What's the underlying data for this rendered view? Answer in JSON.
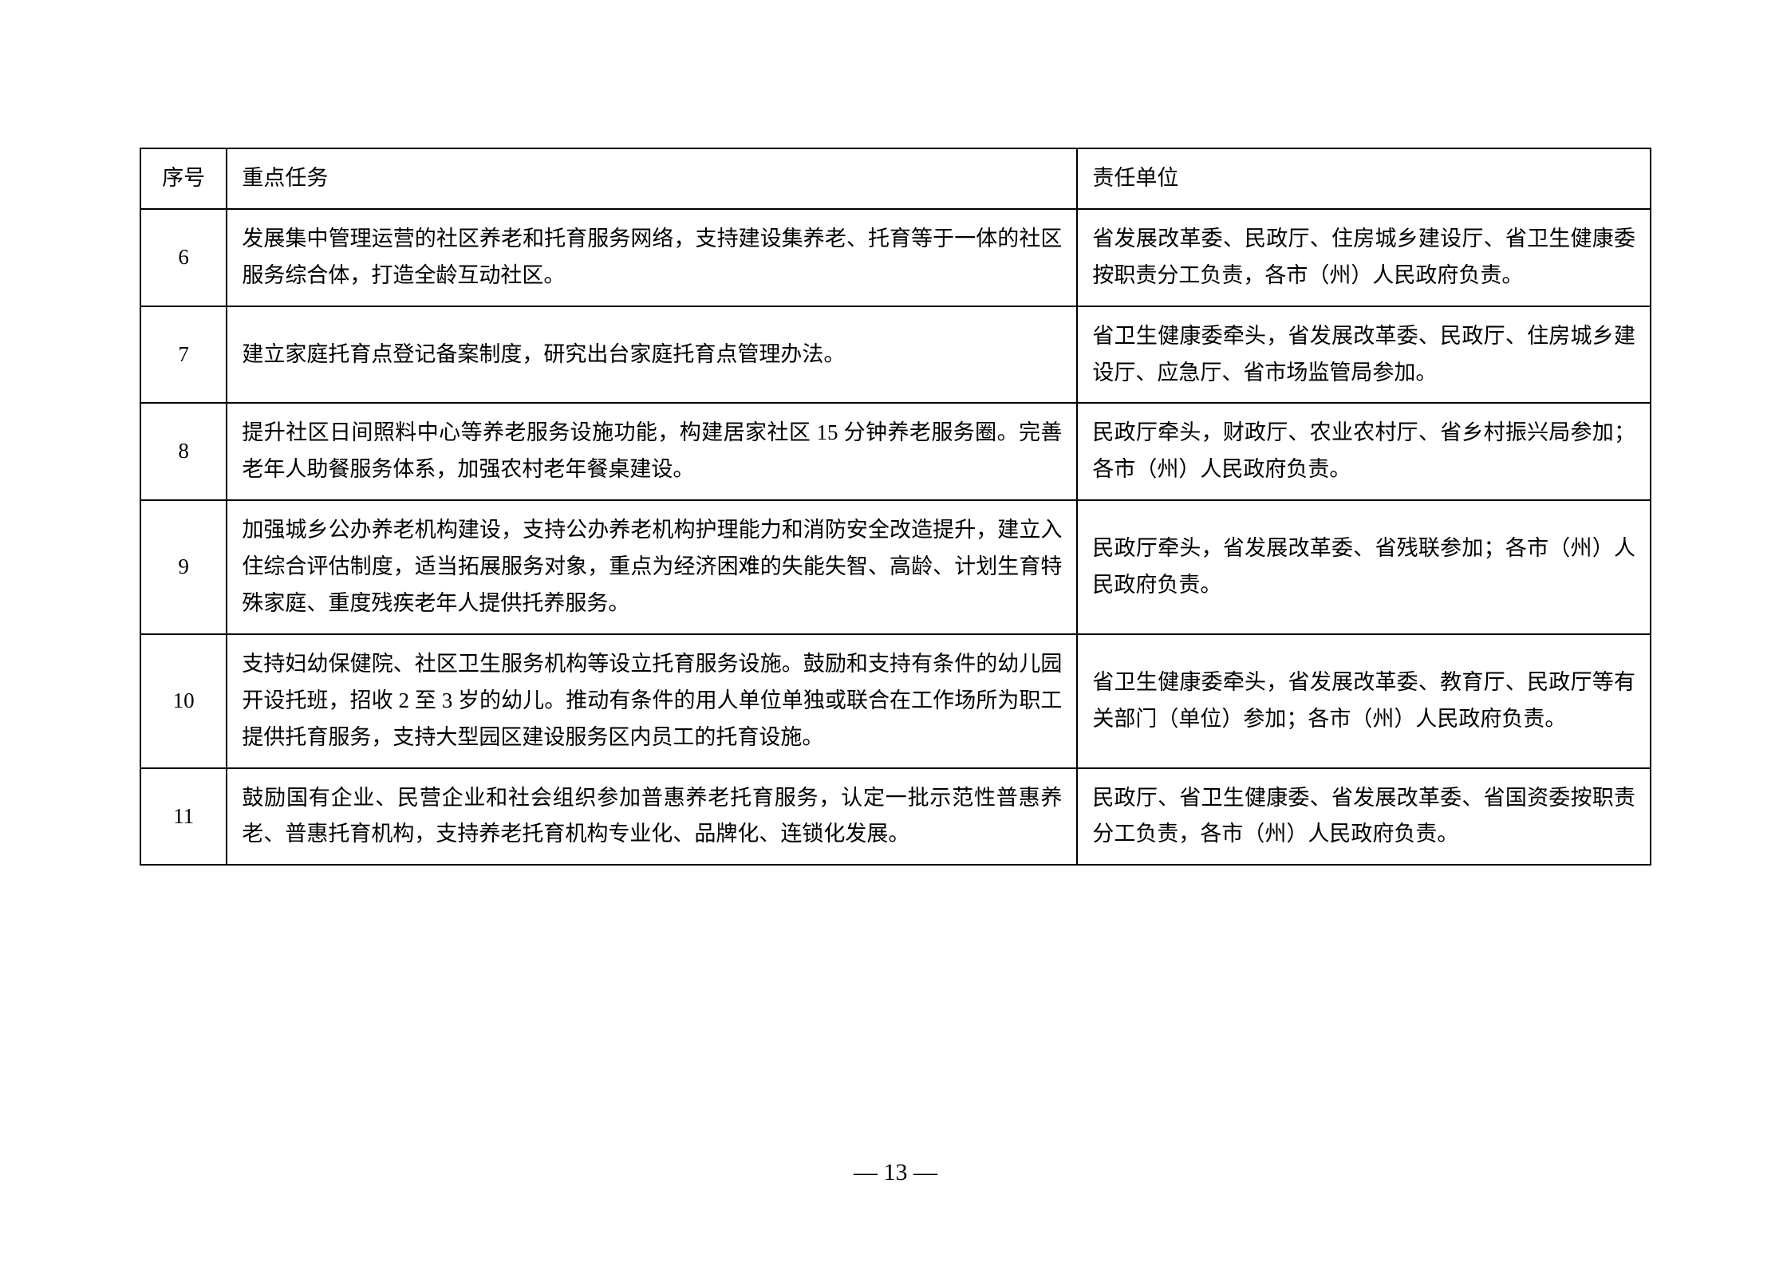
{
  "table": {
    "headers": {
      "seq": "序号",
      "task": "重点任务",
      "unit": "责任单位"
    },
    "rows": [
      {
        "seq": "6",
        "task": "发展集中管理运营的社区养老和托育服务网络，支持建设集养老、托育等于一体的社区服务综合体，打造全龄互动社区。",
        "unit": "省发展改革委、民政厅、住房城乡建设厅、省卫生健康委按职责分工负责，各市（州）人民政府负责。"
      },
      {
        "seq": "7",
        "task": "建立家庭托育点登记备案制度，研究出台家庭托育点管理办法。",
        "unit": "省卫生健康委牵头，省发展改革委、民政厅、住房城乡建设厅、应急厅、省市场监管局参加。"
      },
      {
        "seq": "8",
        "task": "提升社区日间照料中心等养老服务设施功能，构建居家社区 15 分钟养老服务圈。完善老年人助餐服务体系，加强农村老年餐桌建设。",
        "unit": "民政厅牵头，财政厅、农业农村厅、省乡村振兴局参加；各市（州）人民政府负责。"
      },
      {
        "seq": "9",
        "task": "加强城乡公办养老机构建设，支持公办养老机构护理能力和消防安全改造提升，建立入住综合评估制度，适当拓展服务对象，重点为经济困难的失能失智、高龄、计划生育特殊家庭、重度残疾老年人提供托养服务。",
        "unit": "民政厅牵头，省发展改革委、省残联参加；各市（州）人民政府负责。"
      },
      {
        "seq": "10",
        "task": "支持妇幼保健院、社区卫生服务机构等设立托育服务设施。鼓励和支持有条件的幼儿园开设托班，招收 2 至 3 岁的幼儿。推动有条件的用人单位单独或联合在工作场所为职工提供托育服务，支持大型园区建设服务区内员工的托育设施。",
        "unit": "省卫生健康委牵头，省发展改革委、教育厅、民政厅等有关部门（单位）参加；各市（州）人民政府负责。"
      },
      {
        "seq": "11",
        "task": "鼓励国有企业、民营企业和社会组织参加普惠养老托育服务，认定一批示范性普惠养老、普惠托育机构，支持养老托育机构专业化、品牌化、连锁化发展。",
        "unit": "民政厅、省卫生健康委、省发展改革委、省国资委按职责分工负责，各市（州）人民政府负责。"
      }
    ]
  },
  "pageNumber": "— 13 —",
  "styling": {
    "pageWidth": 2245,
    "pageHeight": 1587,
    "backgroundColor": "#ffffff",
    "borderColor": "#000000",
    "textColor": "#000000",
    "fontFamily": "SimSun",
    "cellFontSize": 27,
    "pageNumberFontSize": 30,
    "columnWidths": {
      "seq": 92,
      "task": 905,
      "unit": 610
    }
  }
}
